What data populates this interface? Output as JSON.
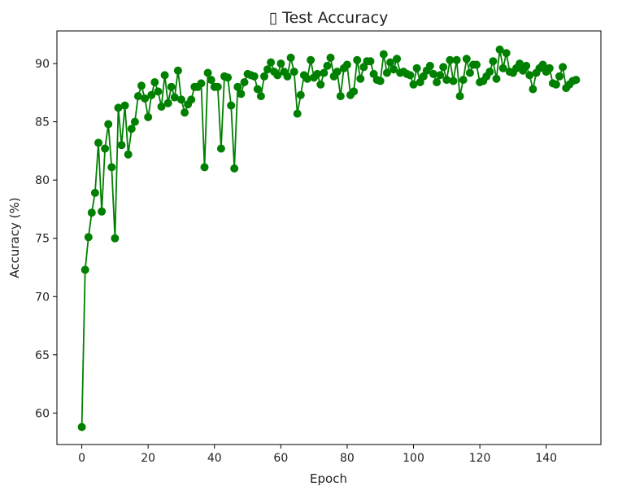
{
  "chart_data": {
    "type": "line",
    "title": "▯ Test Accuracy",
    "xlabel": "Epoch",
    "ylabel": "Accuracy (%)",
    "xlim": [
      -7.5,
      156.5
    ],
    "ylim": [
      57.3,
      92.8
    ],
    "xticks": [
      0,
      20,
      40,
      60,
      80,
      100,
      120,
      140
    ],
    "yticks": [
      60,
      65,
      70,
      75,
      80,
      85,
      90
    ],
    "grid": false,
    "legend": "none",
    "series": [
      {
        "color": "#008000",
        "marker": "circle",
        "x": [
          0,
          1,
          2,
          3,
          4,
          5,
          6,
          7,
          8,
          9,
          10,
          11,
          12,
          13,
          14,
          15,
          16,
          17,
          18,
          19,
          20,
          21,
          22,
          23,
          24,
          25,
          26,
          27,
          28,
          29,
          30,
          31,
          32,
          33,
          34,
          35,
          36,
          37,
          38,
          39,
          40,
          41,
          42,
          43,
          44,
          45,
          46,
          47,
          48,
          49,
          50,
          51,
          52,
          53,
          54,
          55,
          56,
          57,
          58,
          59,
          60,
          61,
          62,
          63,
          64,
          65,
          66,
          67,
          68,
          69,
          70,
          71,
          72,
          73,
          74,
          75,
          76,
          77,
          78,
          79,
          80,
          81,
          82,
          83,
          84,
          85,
          86,
          87,
          88,
          89,
          90,
          91,
          92,
          93,
          94,
          95,
          96,
          97,
          98,
          99,
          100,
          101,
          102,
          103,
          104,
          105,
          106,
          107,
          108,
          109,
          110,
          111,
          112,
          113,
          114,
          115,
          116,
          117,
          118,
          119,
          120,
          121,
          122,
          123,
          124,
          125,
          126,
          127,
          128,
          129,
          130,
          131,
          132,
          133,
          134,
          135,
          136,
          137,
          138,
          139,
          140,
          141,
          142,
          143,
          144,
          145,
          146,
          147,
          148,
          149
        ],
        "y": [
          58.8,
          72.3,
          75.1,
          77.2,
          78.9,
          83.2,
          77.3,
          82.7,
          84.8,
          81.1,
          75.0,
          86.2,
          83.0,
          86.4,
          82.2,
          84.4,
          85.0,
          87.2,
          88.1,
          87.0,
          85.4,
          87.3,
          88.4,
          87.6,
          86.3,
          89.0,
          86.6,
          88.0,
          87.1,
          89.4,
          86.9,
          85.8,
          86.5,
          86.9,
          88.0,
          88.0,
          88.3,
          81.1,
          89.2,
          88.6,
          88.0,
          88.0,
          82.7,
          88.9,
          88.8,
          86.4,
          81.0,
          88.0,
          87.4,
          88.4,
          89.1,
          89.0,
          88.9,
          87.8,
          87.2,
          88.9,
          89.5,
          90.1,
          89.3,
          89.0,
          90.0,
          89.3,
          88.9,
          90.5,
          89.3,
          85.7,
          87.3,
          89.0,
          88.7,
          90.3,
          88.8,
          89.1,
          88.2,
          89.2,
          89.8,
          90.5,
          88.9,
          89.3,
          87.2,
          89.6,
          89.9,
          87.3,
          87.6,
          90.3,
          88.7,
          89.7,
          90.2,
          90.2,
          89.1,
          88.6,
          88.5,
          90.8,
          89.2,
          90.1,
          89.5,
          90.4,
          89.2,
          89.3,
          89.1,
          89.0,
          88.2,
          89.6,
          88.4,
          88.9,
          89.4,
          89.8,
          89.1,
          88.4,
          89.0,
          89.7,
          88.6,
          90.3,
          88.5,
          90.3,
          87.2,
          88.6,
          90.4,
          89.2,
          89.9,
          89.9,
          88.4,
          88.5,
          88.9,
          89.3,
          90.2,
          88.7,
          91.2,
          89.6,
          90.9,
          89.3,
          89.2,
          89.6,
          90.0,
          89.4,
          89.8,
          89.0,
          87.8,
          89.2,
          89.6,
          89.9,
          89.3,
          89.6,
          88.3,
          88.2,
          88.9,
          89.7,
          87.9,
          88.2,
          88.5,
          88.6
        ]
      }
    ]
  }
}
